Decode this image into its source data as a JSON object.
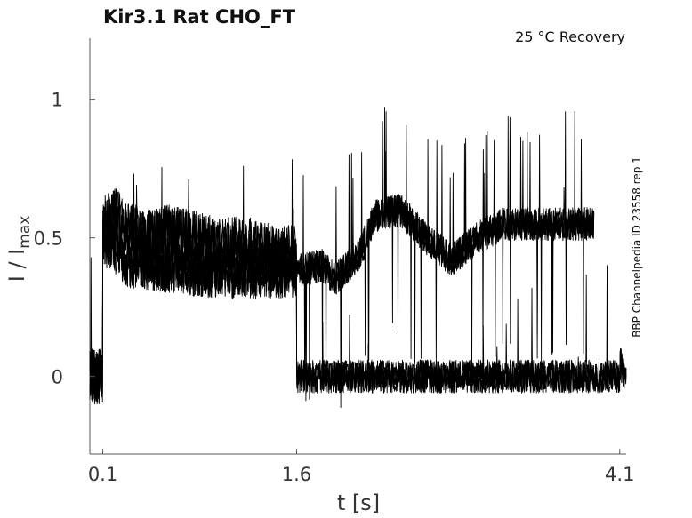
{
  "chart_data": {
    "type": "line",
    "title": "Kir3.1  Rat  CHO_FT",
    "condition": "25 °C  Recovery",
    "side_label": "BBP Channelpedia ID 23558 rep 1",
    "xlabel": "t [s]",
    "ylabel_main": "I / I",
    "ylabel_sub": "max",
    "xlim": [
      0.0,
      4.15
    ],
    "ylim": [
      -0.28,
      1.22
    ],
    "x_ticks": [
      {
        "value": 0.1,
        "label": "0.1"
      },
      {
        "value": 1.6,
        "label": "1.6"
      },
      {
        "value": 4.1,
        "label": "4.1"
      }
    ],
    "y_ticks": [
      {
        "value": 0,
        "label": "0"
      },
      {
        "value": 0.5,
        "label": "0.5"
      },
      {
        "value": 1,
        "label": "1"
      }
    ],
    "grid": false,
    "legend": "none",
    "line_color": "#000000",
    "series": [
      {
        "values_desc": "",
        "t": [
          0.0,
          0.1,
          0.1,
          0.2,
          0.4,
          0.6,
          0.8,
          1.0,
          1.2,
          1.4,
          1.6,
          1.6,
          1.7,
          1.8,
          2.0,
          2.2,
          2.4,
          2.6,
          2.8,
          3.0,
          3.2,
          3.4,
          3.6,
          3.8,
          3.9,
          4.1,
          4.1,
          4.15
        ],
        "i": [
          0.0,
          0.0,
          0.55,
          0.58,
          0.5,
          0.52,
          0.5,
          0.47,
          0.48,
          0.45,
          0.45,
          0.0,
          0.0,
          0.0,
          0.0,
          0.0,
          0.0,
          0.0,
          0.0,
          0.0,
          0.0,
          0.0,
          0.0,
          0.0,
          0.0,
          0.0,
          0.05,
          0.0
        ]
      },
      {
        "values_desc": "",
        "t": [
          0.0,
          0.1,
          0.1,
          0.3,
          0.6,
          1.0,
          1.3,
          1.6,
          1.6,
          1.8,
          1.9,
          2.1,
          2.2,
          2.4,
          2.6,
          2.8,
          3.0,
          3.2,
          3.4,
          3.6,
          3.8,
          3.9
        ],
        "i": [
          0.0,
          0.0,
          0.5,
          0.42,
          0.4,
          0.38,
          0.38,
          0.38,
          0.38,
          0.4,
          0.35,
          0.45,
          0.58,
          0.6,
          0.5,
          0.42,
          0.5,
          0.55,
          0.55,
          0.55,
          0.55,
          0.55
        ]
      }
    ]
  }
}
